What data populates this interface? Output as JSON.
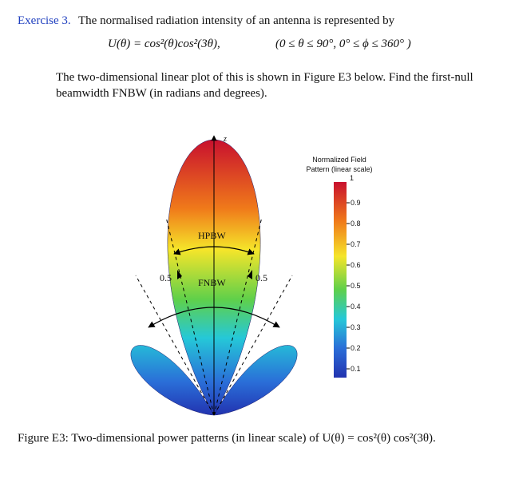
{
  "exercise": {
    "label": "Exercise 3.",
    "text": "The normalised radiation intensity of an antenna is represented by"
  },
  "equation": {
    "formula": "U(θ) = cos²(θ)cos²(3θ),",
    "range": "(0 ≤ θ ≤ 90°,  0° ≤ ϕ ≤ 360° )"
  },
  "paragraph": [
    "The two-dimensional linear plot of this is shown in Figure E3 below. Find the first-null",
    "beamwidth FNBW (in radians and degrees)."
  ],
  "figure": {
    "axis_label": "z",
    "hpbw": "HPBW",
    "fnbw": "FNBW",
    "left_level": "0.5",
    "right_level": "0.5",
    "colorbar": {
      "title": [
        "Normalized Field",
        "Pattern (linear scale)"
      ],
      "ticks": [
        1,
        0.9,
        0.8,
        0.7,
        0.6,
        0.5,
        0.4,
        0.3,
        0.2,
        0.1
      ]
    }
  },
  "caption": "Figure E3: Two-dimensional power patterns (in linear scale) of U(θ) = cos²(θ) cos²(3θ)."
}
